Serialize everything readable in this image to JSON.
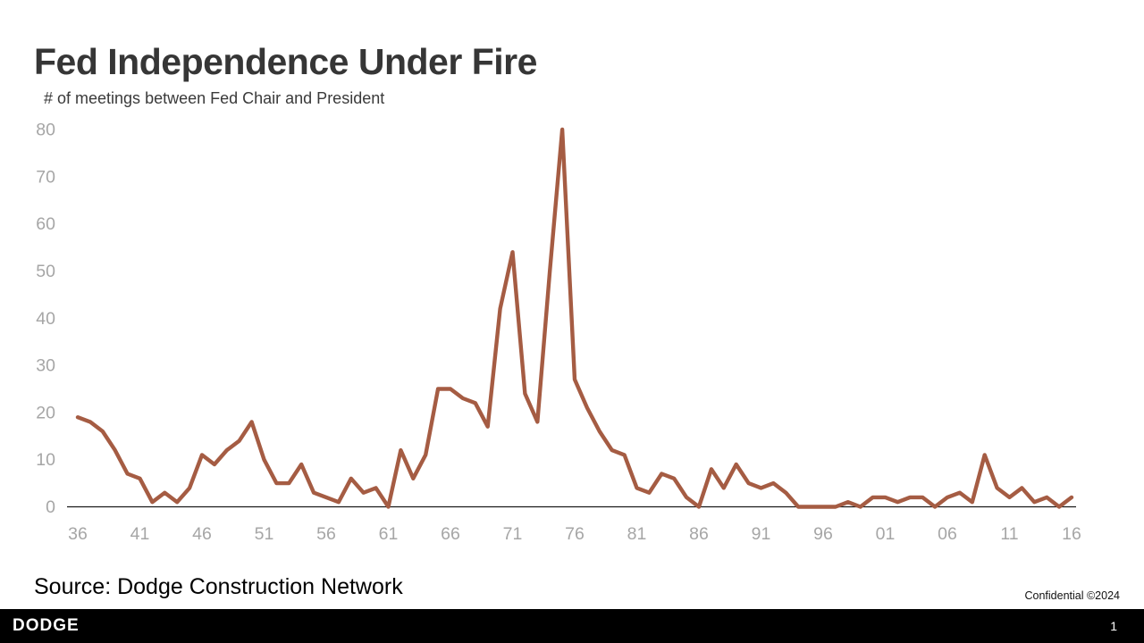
{
  "header": {
    "title": "Fed Independence Under Fire",
    "subtitle": "# of meetings between Fed Chair and President"
  },
  "footer": {
    "source": "Source: Dodge Construction Network",
    "confidential": "Confidential ©2024",
    "brand": "DODGE",
    "page_number": "1"
  },
  "colors": {
    "line": "#A55C43",
    "axis": "#1a1a1a",
    "tick_label": "#a6a6a6",
    "title_text": "#363636",
    "footer_bg": "#000000",
    "footer_text": "#ffffff"
  },
  "chart_data": {
    "type": "line",
    "title": "Fed Independence Under Fire",
    "subtitle": "# of meetings between Fed Chair and President",
    "xlabel": "",
    "ylabel": "# of meetings",
    "ylim": [
      0,
      80
    ],
    "grid": false,
    "legend": "none",
    "y_ticks": [
      0,
      10,
      20,
      30,
      40,
      50,
      60,
      70,
      80
    ],
    "x_tick_years": [
      1936,
      1941,
      1946,
      1951,
      1956,
      1961,
      1966,
      1971,
      1976,
      1981,
      1986,
      1991,
      1996,
      2001,
      2006,
      2011,
      2016
    ],
    "x_tick_labels": [
      "36",
      "41",
      "46",
      "51",
      "56",
      "61",
      "66",
      "71",
      "76",
      "81",
      "86",
      "91",
      "96",
      "01",
      "06",
      "11",
      "16"
    ],
    "series": [
      {
        "name": "Meetings between Fed Chair and President",
        "x_start": 1936,
        "x_end": 2016,
        "values": [
          19,
          18,
          16,
          12,
          7,
          6,
          1,
          3,
          1,
          4,
          11,
          9,
          12,
          14,
          18,
          10,
          5,
          5,
          9,
          3,
          2,
          1,
          6,
          3,
          4,
          0,
          12,
          6,
          11,
          25,
          25,
          23,
          22,
          17,
          42,
          54,
          24,
          18,
          50,
          80,
          27,
          21,
          16,
          12,
          11,
          4,
          3,
          7,
          6,
          2,
          0,
          8,
          4,
          9,
          5,
          4,
          5,
          3,
          0,
          0,
          0,
          0,
          1,
          0,
          2,
          2,
          1,
          2,
          2,
          0,
          2,
          3,
          1,
          11,
          4,
          2,
          4,
          1,
          2,
          0,
          2
        ]
      }
    ]
  }
}
